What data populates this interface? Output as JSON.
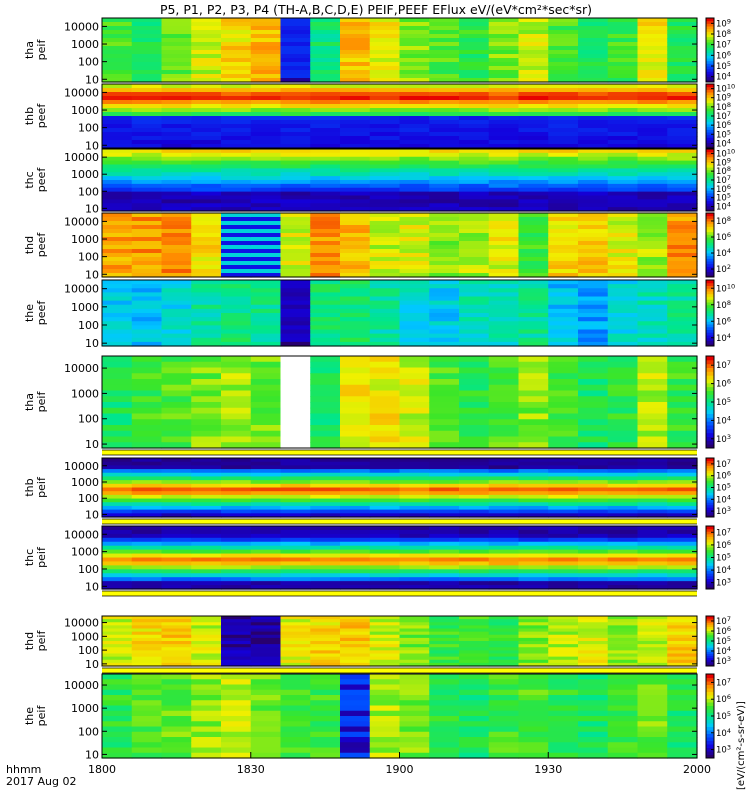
{
  "title": "P5, P1, P2, P3, P4 (TH-A,B,C,D,E) PEIF,PEEF EFlux eV/(eV*cm²*sec*sr)",
  "xaxis": {
    "ticks": [
      "1800",
      "1830",
      "1900",
      "1930",
      "2000"
    ],
    "label_line1": "hhmm",
    "label_line2": "2017 Aug 02"
  },
  "colorbar_unit": "[eV/(cm²-s-sr-eV)]",
  "yticks": [
    "10000",
    "1000",
    "100",
    "10"
  ],
  "chart_data": {
    "type": "heatmap",
    "x_range": [
      "18:00",
      "20:00"
    ],
    "y_scale": "log",
    "y_range": [
      7,
      30000
    ],
    "panels": [
      {
        "label_top": "tha",
        "label_bot": "peif",
        "cbar_exps": [
          4,
          5,
          6,
          7,
          8,
          9
        ],
        "columns": [
          0.62,
          0.55,
          0.65,
          0.72,
          0.78,
          0.82,
          0.35,
          0.52,
          0.82,
          0.75,
          0.68,
          0.62,
          0.58,
          0.66,
          0.72,
          0.62,
          0.55,
          0.6,
          0.76,
          0.56
        ],
        "dark": [
          6
        ],
        "dark_value": 0.14
      },
      {
        "label_top": "thb",
        "label_bot": "peef",
        "cbar_exps": [
          4,
          5,
          6,
          7,
          8,
          9,
          10
        ],
        "profile": "thb_peef"
      },
      {
        "label_top": "thc",
        "label_bot": "peef",
        "cbar_exps": [
          4,
          5,
          6,
          7,
          8,
          9,
          10
        ],
        "profile": "thc_peef"
      },
      {
        "label_top": "thd",
        "label_bot": "peef",
        "cbar_exps": [
          2,
          4,
          6,
          8
        ],
        "columns": [
          0.84,
          0.86,
          0.88,
          0.78,
          0.42,
          0.4,
          0.74,
          0.86,
          0.82,
          0.72,
          0.74,
          0.66,
          0.7,
          0.74,
          0.6,
          0.78,
          0.8,
          0.74,
          0.7,
          0.86
        ],
        "striped": [
          4,
          5
        ]
      },
      {
        "label_top": "the",
        "label_bot": "peef",
        "cbar_exps": [
          4,
          6,
          8,
          10
        ],
        "columns": [
          0.4,
          0.38,
          0.42,
          0.48,
          0.52,
          0.5,
          0.1,
          0.52,
          0.54,
          0.48,
          0.42,
          0.4,
          0.46,
          0.44,
          0.5,
          0.38,
          0.34,
          0.42,
          0.45,
          0.5
        ],
        "dark": [
          6
        ],
        "dark_value": 0.05
      },
      {
        "label_top": "tha",
        "label_bot": "peif",
        "cbar_exps": [
          3,
          4,
          5,
          6,
          7
        ],
        "columns": [
          0.55,
          0.6,
          0.62,
          0.66,
          0.7,
          0.65,
          null,
          0.55,
          0.75,
          0.76,
          0.72,
          0.62,
          0.58,
          0.62,
          0.68,
          0.6,
          0.55,
          0.58,
          0.7,
          0.6
        ],
        "has_strip": true
      },
      {
        "label_top": "thb",
        "label_bot": "peif",
        "cbar_exps": [
          3,
          4,
          5,
          6,
          7
        ],
        "profile": "thb_peif",
        "has_strip": true
      },
      {
        "label_top": "thc",
        "label_bot": "peif",
        "cbar_exps": [
          3,
          4,
          5,
          6,
          7
        ],
        "profile": "thc_peif",
        "has_strip": true
      },
      {
        "label_top": "thd",
        "label_bot": "peif",
        "cbar_exps": [
          3,
          4,
          5,
          6,
          7
        ],
        "columns": [
          0.72,
          0.78,
          0.8,
          0.72,
          0.18,
          0.16,
          0.74,
          0.78,
          0.8,
          0.72,
          0.66,
          0.6,
          0.62,
          0.58,
          0.66,
          0.7,
          0.74,
          0.68,
          0.72,
          0.8
        ],
        "dark": [
          4,
          5
        ],
        "dark_value": 0.06,
        "has_strip": true
      },
      {
        "label_top": "the",
        "label_bot": "peif",
        "cbar_exps": [
          3,
          4,
          5,
          6,
          7
        ],
        "columns": [
          0.58,
          0.62,
          0.64,
          0.68,
          0.7,
          0.66,
          0.6,
          0.6,
          0.24,
          0.7,
          0.66,
          0.58,
          0.55,
          0.6,
          0.62,
          0.58,
          0.55,
          0.6,
          0.66,
          0.56
        ],
        "dark": [
          8
        ],
        "dark_value": 0.2
      }
    ]
  }
}
